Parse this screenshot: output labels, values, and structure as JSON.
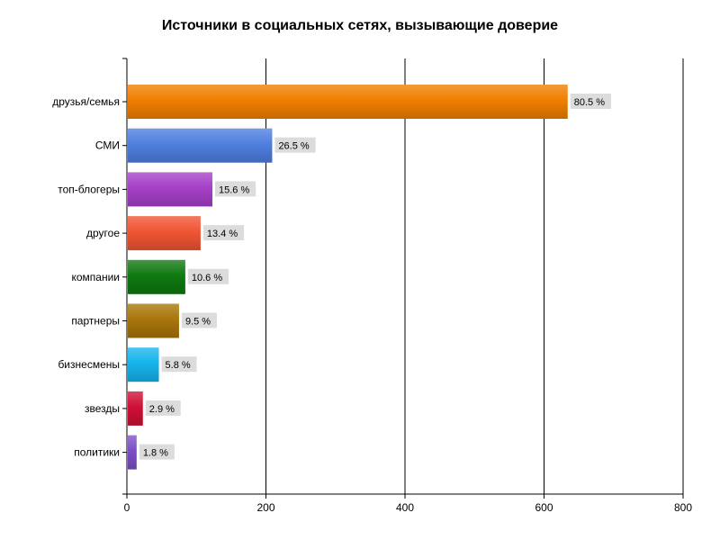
{
  "chart_data": {
    "type": "bar",
    "orientation": "horizontal",
    "title": "Источники в социальных сетях, вызывающие доверие",
    "xlim": [
      0,
      800
    ],
    "x_ticks": [
      "0",
      "200",
      "400",
      "600",
      "800"
    ],
    "grid": true,
    "categories": [
      "друзья/семья",
      "СМИ",
      "топ-блогеры",
      "другое",
      "компании",
      "партнеры",
      "бизнесмены",
      "звезды",
      "политики"
    ],
    "values": [
      634,
      209,
      123,
      106,
      84,
      75,
      46,
      23,
      14
    ],
    "data_labels": [
      "80.5 %",
      "26.5 %",
      "15.6 %",
      "13.4 %",
      "10.6 %",
      "9.5 %",
      "5.8 %",
      "2.9 %",
      "1.8 %"
    ],
    "colors": [
      "#f07f00",
      "#4f7fe0",
      "#a640c8",
      "#f05533",
      "#0f7a10",
      "#a8760a",
      "#16b4ec",
      "#d01035",
      "#7d4fc8"
    ]
  }
}
